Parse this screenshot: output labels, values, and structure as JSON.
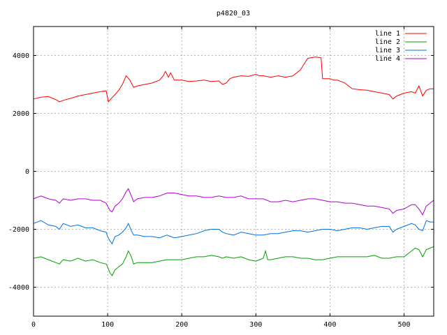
{
  "chart_data": {
    "type": "line",
    "title": "p4820_03",
    "xlabel": "",
    "ylabel": "",
    "xlim": [
      0,
      540
    ],
    "ylim": [
      -5000,
      5000
    ],
    "x_ticks": [
      0,
      100,
      200,
      300,
      400,
      500
    ],
    "y_ticks": [
      -4000,
      -2000,
      0,
      2000,
      4000
    ],
    "grid": true,
    "legend_position": "top-right",
    "series": [
      {
        "name": "line 1",
        "color": "#ff0000",
        "points": [
          [
            0,
            2500
          ],
          [
            10,
            2560
          ],
          [
            20,
            2580
          ],
          [
            30,
            2480
          ],
          [
            35,
            2400
          ],
          [
            40,
            2450
          ],
          [
            50,
            2520
          ],
          [
            60,
            2600
          ],
          [
            70,
            2650
          ],
          [
            80,
            2700
          ],
          [
            90,
            2750
          ],
          [
            98,
            2780
          ],
          [
            101,
            2400
          ],
          [
            105,
            2520
          ],
          [
            110,
            2650
          ],
          [
            115,
            2800
          ],
          [
            120,
            3000
          ],
          [
            125,
            3300
          ],
          [
            130,
            3150
          ],
          [
            135,
            2900
          ],
          [
            140,
            2950
          ],
          [
            150,
            3000
          ],
          [
            160,
            3050
          ],
          [
            170,
            3150
          ],
          [
            175,
            3300
          ],
          [
            178,
            3450
          ],
          [
            182,
            3250
          ],
          [
            185,
            3400
          ],
          [
            190,
            3150
          ],
          [
            200,
            3150
          ],
          [
            210,
            3100
          ],
          [
            220,
            3120
          ],
          [
            230,
            3150
          ],
          [
            240,
            3100
          ],
          [
            250,
            3120
          ],
          [
            255,
            3000
          ],
          [
            260,
            3050
          ],
          [
            265,
            3200
          ],
          [
            270,
            3250
          ],
          [
            280,
            3300
          ],
          [
            290,
            3280
          ],
          [
            300,
            3350
          ],
          [
            305,
            3300
          ],
          [
            310,
            3300
          ],
          [
            320,
            3250
          ],
          [
            330,
            3300
          ],
          [
            340,
            3250
          ],
          [
            350,
            3300
          ],
          [
            355,
            3400
          ],
          [
            360,
            3500
          ],
          [
            365,
            3700
          ],
          [
            370,
            3900
          ],
          [
            380,
            3950
          ],
          [
            388,
            3920
          ],
          [
            390,
            3200
          ],
          [
            395,
            3200
          ],
          [
            400,
            3200
          ],
          [
            405,
            3150
          ],
          [
            410,
            3150
          ],
          [
            415,
            3100
          ],
          [
            420,
            3050
          ],
          [
            425,
            2950
          ],
          [
            430,
            2850
          ],
          [
            440,
            2820
          ],
          [
            450,
            2800
          ],
          [
            460,
            2750
          ],
          [
            470,
            2700
          ],
          [
            480,
            2650
          ],
          [
            485,
            2500
          ],
          [
            490,
            2600
          ],
          [
            500,
            2700
          ],
          [
            510,
            2750
          ],
          [
            515,
            2700
          ],
          [
            520,
            2950
          ],
          [
            525,
            2600
          ],
          [
            530,
            2800
          ],
          [
            535,
            2850
          ],
          [
            540,
            2850
          ]
        ]
      },
      {
        "name": "line 2",
        "color": "#00a000",
        "points": [
          [
            0,
            -3000
          ],
          [
            10,
            -2950
          ],
          [
            20,
            -3050
          ],
          [
            30,
            -3150
          ],
          [
            35,
            -3200
          ],
          [
            40,
            -3050
          ],
          [
            50,
            -3100
          ],
          [
            60,
            -3000
          ],
          [
            70,
            -3100
          ],
          [
            80,
            -3050
          ],
          [
            90,
            -3150
          ],
          [
            98,
            -3200
          ],
          [
            100,
            -3300
          ],
          [
            103,
            -3500
          ],
          [
            106,
            -3600
          ],
          [
            110,
            -3400
          ],
          [
            115,
            -3300
          ],
          [
            120,
            -3200
          ],
          [
            125,
            -2950
          ],
          [
            128,
            -2750
          ],
          [
            132,
            -2950
          ],
          [
            135,
            -3200
          ],
          [
            140,
            -3150
          ],
          [
            150,
            -3150
          ],
          [
            160,
            -3150
          ],
          [
            170,
            -3100
          ],
          [
            180,
            -3050
          ],
          [
            190,
            -3050
          ],
          [
            200,
            -3050
          ],
          [
            210,
            -3000
          ],
          [
            220,
            -2950
          ],
          [
            230,
            -2950
          ],
          [
            240,
            -2900
          ],
          [
            250,
            -2950
          ],
          [
            255,
            -3000
          ],
          [
            260,
            -2950
          ],
          [
            270,
            -3000
          ],
          [
            280,
            -2950
          ],
          [
            290,
            -3050
          ],
          [
            300,
            -3100
          ],
          [
            305,
            -3050
          ],
          [
            310,
            -3000
          ],
          [
            313,
            -2750
          ],
          [
            316,
            -3050
          ],
          [
            320,
            -3050
          ],
          [
            330,
            -3000
          ],
          [
            340,
            -2950
          ],
          [
            350,
            -2950
          ],
          [
            360,
            -3000
          ],
          [
            370,
            -3000
          ],
          [
            380,
            -3050
          ],
          [
            390,
            -3050
          ],
          [
            400,
            -3000
          ],
          [
            410,
            -2950
          ],
          [
            420,
            -2950
          ],
          [
            430,
            -2950
          ],
          [
            440,
            -2950
          ],
          [
            450,
            -2950
          ],
          [
            460,
            -2900
          ],
          [
            470,
            -3000
          ],
          [
            480,
            -3000
          ],
          [
            490,
            -2950
          ],
          [
            500,
            -2950
          ],
          [
            510,
            -2750
          ],
          [
            515,
            -2650
          ],
          [
            520,
            -2700
          ],
          [
            525,
            -2950
          ],
          [
            530,
            -2700
          ],
          [
            535,
            -2650
          ],
          [
            540,
            -2600
          ]
        ]
      },
      {
        "name": "line 3",
        "color": "#0070e0",
        "points": [
          [
            0,
            -1800
          ],
          [
            10,
            -1700
          ],
          [
            20,
            -1850
          ],
          [
            30,
            -1900
          ],
          [
            35,
            -2000
          ],
          [
            40,
            -1800
          ],
          [
            50,
            -1900
          ],
          [
            60,
            -1850
          ],
          [
            70,
            -1950
          ],
          [
            80,
            -1950
          ],
          [
            90,
            -2050
          ],
          [
            98,
            -2100
          ],
          [
            100,
            -2250
          ],
          [
            103,
            -2400
          ],
          [
            106,
            -2500
          ],
          [
            110,
            -2250
          ],
          [
            115,
            -2200
          ],
          [
            120,
            -2100
          ],
          [
            125,
            -1950
          ],
          [
            128,
            -1800
          ],
          [
            132,
            -2050
          ],
          [
            135,
            -2200
          ],
          [
            140,
            -2200
          ],
          [
            150,
            -2250
          ],
          [
            160,
            -2250
          ],
          [
            170,
            -2300
          ],
          [
            180,
            -2200
          ],
          [
            190,
            -2300
          ],
          [
            200,
            -2250
          ],
          [
            210,
            -2200
          ],
          [
            220,
            -2150
          ],
          [
            230,
            -2050
          ],
          [
            240,
            -2000
          ],
          [
            250,
            -2000
          ],
          [
            255,
            -2100
          ],
          [
            260,
            -2150
          ],
          [
            270,
            -2200
          ],
          [
            280,
            -2100
          ],
          [
            290,
            -2150
          ],
          [
            300,
            -2200
          ],
          [
            310,
            -2200
          ],
          [
            320,
            -2150
          ],
          [
            330,
            -2150
          ],
          [
            340,
            -2100
          ],
          [
            350,
            -2050
          ],
          [
            360,
            -2050
          ],
          [
            370,
            -2100
          ],
          [
            380,
            -2050
          ],
          [
            390,
            -2000
          ],
          [
            400,
            -2000
          ],
          [
            410,
            -2050
          ],
          [
            420,
            -2000
          ],
          [
            430,
            -1950
          ],
          [
            440,
            -1950
          ],
          [
            450,
            -2000
          ],
          [
            460,
            -1950
          ],
          [
            470,
            -1900
          ],
          [
            480,
            -1900
          ],
          [
            485,
            -2100
          ],
          [
            490,
            -2000
          ],
          [
            500,
            -1900
          ],
          [
            510,
            -1800
          ],
          [
            515,
            -1850
          ],
          [
            520,
            -2000
          ],
          [
            525,
            -2050
          ],
          [
            530,
            -1700
          ],
          [
            535,
            -1750
          ],
          [
            540,
            -1750
          ]
        ]
      },
      {
        "name": "line 4",
        "color": "#b000d0",
        "points": [
          [
            0,
            -950
          ],
          [
            10,
            -850
          ],
          [
            20,
            -950
          ],
          [
            30,
            -1000
          ],
          [
            35,
            -1100
          ],
          [
            40,
            -950
          ],
          [
            50,
            -1000
          ],
          [
            60,
            -950
          ],
          [
            70,
            -950
          ],
          [
            80,
            -1000
          ],
          [
            90,
            -1000
          ],
          [
            98,
            -1100
          ],
          [
            100,
            -1200
          ],
          [
            103,
            -1350
          ],
          [
            106,
            -1400
          ],
          [
            110,
            -1200
          ],
          [
            115,
            -1100
          ],
          [
            120,
            -950
          ],
          [
            125,
            -700
          ],
          [
            128,
            -600
          ],
          [
            132,
            -850
          ],
          [
            135,
            -1050
          ],
          [
            140,
            -950
          ],
          [
            150,
            -900
          ],
          [
            160,
            -900
          ],
          [
            170,
            -850
          ],
          [
            180,
            -750
          ],
          [
            190,
            -750
          ],
          [
            200,
            -800
          ],
          [
            210,
            -850
          ],
          [
            220,
            -850
          ],
          [
            230,
            -900
          ],
          [
            240,
            -900
          ],
          [
            250,
            -850
          ],
          [
            260,
            -900
          ],
          [
            270,
            -900
          ],
          [
            280,
            -850
          ],
          [
            290,
            -950
          ],
          [
            300,
            -950
          ],
          [
            310,
            -950
          ],
          [
            320,
            -1050
          ],
          [
            330,
            -1050
          ],
          [
            340,
            -1000
          ],
          [
            350,
            -1050
          ],
          [
            360,
            -1000
          ],
          [
            370,
            -950
          ],
          [
            380,
            -950
          ],
          [
            390,
            -1000
          ],
          [
            400,
            -1050
          ],
          [
            410,
            -1050
          ],
          [
            420,
            -1100
          ],
          [
            430,
            -1100
          ],
          [
            440,
            -1150
          ],
          [
            450,
            -1200
          ],
          [
            460,
            -1200
          ],
          [
            470,
            -1250
          ],
          [
            480,
            -1300
          ],
          [
            485,
            -1450
          ],
          [
            490,
            -1350
          ],
          [
            500,
            -1300
          ],
          [
            510,
            -1150
          ],
          [
            515,
            -1150
          ],
          [
            520,
            -1300
          ],
          [
            525,
            -1500
          ],
          [
            530,
            -1200
          ],
          [
            535,
            -1100
          ],
          [
            540,
            -1000
          ]
        ]
      }
    ]
  }
}
